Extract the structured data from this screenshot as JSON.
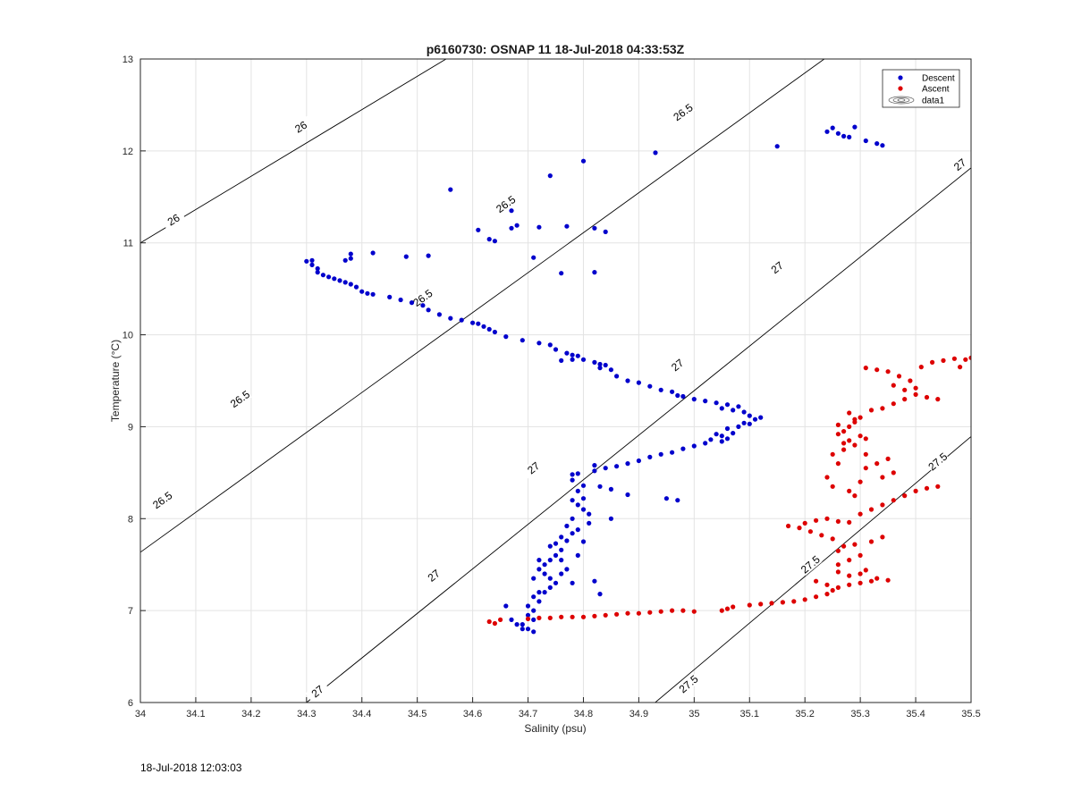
{
  "chart_data": {
    "type": "scatter",
    "title": "p6160730: OSNAP 11 18-Jul-2018 04:33:53Z",
    "xlabel": "Salinity (psu)",
    "ylabel": "Temperature (°C)",
    "xlim": [
      34,
      35.5
    ],
    "ylim": [
      6,
      13
    ],
    "xticks": [
      "34",
      "34.1",
      "34.2",
      "34.3",
      "34.4",
      "34.5",
      "34.6",
      "34.7",
      "34.8",
      "34.9",
      "35",
      "35.1",
      "35.2",
      "35.3",
      "35.4",
      "35.5"
    ],
    "yticks": [
      "6",
      "7",
      "8",
      "9",
      "10",
      "11",
      "12",
      "13"
    ],
    "grid": true,
    "legend_position": "top-right",
    "legend": [
      "Descent",
      "Ascent",
      "data1"
    ],
    "series": [
      {
        "name": "Descent",
        "color": "#0000cc",
        "points": [
          [
            35.24,
            12.21
          ],
          [
            35.25,
            12.25
          ],
          [
            35.26,
            12.19
          ],
          [
            35.27,
            12.16
          ],
          [
            35.28,
            12.15
          ],
          [
            35.29,
            12.26
          ],
          [
            35.31,
            12.11
          ],
          [
            35.33,
            12.08
          ],
          [
            35.34,
            12.06
          ],
          [
            35.15,
            12.05
          ],
          [
            34.93,
            11.98
          ],
          [
            34.8,
            11.89
          ],
          [
            34.74,
            11.73
          ],
          [
            34.56,
            11.58
          ],
          [
            34.67,
            11.35
          ],
          [
            34.61,
            11.14
          ],
          [
            34.63,
            11.04
          ],
          [
            34.64,
            11.02
          ],
          [
            34.68,
            11.19
          ],
          [
            34.67,
            11.16
          ],
          [
            34.72,
            11.17
          ],
          [
            34.77,
            11.18
          ],
          [
            34.82,
            11.16
          ],
          [
            34.84,
            11.12
          ],
          [
            34.71,
            10.84
          ],
          [
            34.76,
            10.67
          ],
          [
            34.82,
            10.68
          ],
          [
            34.42,
            10.89
          ],
          [
            34.38,
            10.88
          ],
          [
            34.38,
            10.83
          ],
          [
            34.48,
            10.85
          ],
          [
            34.52,
            10.86
          ],
          [
            34.37,
            10.81
          ],
          [
            34.3,
            10.8
          ],
          [
            34.31,
            10.81
          ],
          [
            34.31,
            10.76
          ],
          [
            34.32,
            10.72
          ],
          [
            34.32,
            10.68
          ],
          [
            34.33,
            10.65
          ],
          [
            34.34,
            10.63
          ],
          [
            34.35,
            10.61
          ],
          [
            34.36,
            10.59
          ],
          [
            34.37,
            10.57
          ],
          [
            34.38,
            10.55
          ],
          [
            34.39,
            10.52
          ],
          [
            34.4,
            10.47
          ],
          [
            34.41,
            10.45
          ],
          [
            34.42,
            10.44
          ],
          [
            34.45,
            10.41
          ],
          [
            34.47,
            10.38
          ],
          [
            34.49,
            10.35
          ],
          [
            34.51,
            10.32
          ],
          [
            34.52,
            10.27
          ],
          [
            34.54,
            10.22
          ],
          [
            34.56,
            10.18
          ],
          [
            34.58,
            10.16
          ],
          [
            34.6,
            10.13
          ],
          [
            34.61,
            10.12
          ],
          [
            34.62,
            10.09
          ],
          [
            34.63,
            10.06
          ],
          [
            34.64,
            10.03
          ],
          [
            34.66,
            9.98
          ],
          [
            34.69,
            9.94
          ],
          [
            34.72,
            9.91
          ],
          [
            34.74,
            9.89
          ],
          [
            34.75,
            9.84
          ],
          [
            34.77,
            9.8
          ],
          [
            34.78,
            9.78
          ],
          [
            34.79,
            9.77
          ],
          [
            34.78,
            9.73
          ],
          [
            34.8,
            9.73
          ],
          [
            34.76,
            9.72
          ],
          [
            34.82,
            9.7
          ],
          [
            34.83,
            9.68
          ],
          [
            34.84,
            9.67
          ],
          [
            34.85,
            9.62
          ],
          [
            34.83,
            9.64
          ],
          [
            34.86,
            9.55
          ],
          [
            34.88,
            9.5
          ],
          [
            34.9,
            9.48
          ],
          [
            34.92,
            9.44
          ],
          [
            34.94,
            9.4
          ],
          [
            34.96,
            9.38
          ],
          [
            34.97,
            9.34
          ],
          [
            34.98,
            9.33
          ],
          [
            35.0,
            9.3
          ],
          [
            35.02,
            9.28
          ],
          [
            35.04,
            9.26
          ],
          [
            35.06,
            9.24
          ],
          [
            35.08,
            9.22
          ],
          [
            35.07,
            9.18
          ],
          [
            35.05,
            9.2
          ],
          [
            35.09,
            9.16
          ],
          [
            35.1,
            9.12
          ],
          [
            35.11,
            9.08
          ],
          [
            35.12,
            9.1
          ],
          [
            35.1,
            9.03
          ],
          [
            35.08,
            9.0
          ],
          [
            35.06,
            8.98
          ],
          [
            35.09,
            9.04
          ],
          [
            35.07,
            8.93
          ],
          [
            35.05,
            8.9
          ],
          [
            35.03,
            8.86
          ],
          [
            35.04,
            8.92
          ],
          [
            35.06,
            8.87
          ],
          [
            35.05,
            8.84
          ],
          [
            35.02,
            8.82
          ],
          [
            35.0,
            8.79
          ],
          [
            34.98,
            8.76
          ],
          [
            34.96,
            8.72
          ],
          [
            34.94,
            8.7
          ],
          [
            34.92,
            8.67
          ],
          [
            34.9,
            8.63
          ],
          [
            34.88,
            8.6
          ],
          [
            34.86,
            8.57
          ],
          [
            34.84,
            8.55
          ],
          [
            34.82,
            8.52
          ],
          [
            34.79,
            8.49
          ],
          [
            34.78,
            8.48
          ],
          [
            34.78,
            8.42
          ],
          [
            34.8,
            8.36
          ],
          [
            34.79,
            8.3
          ],
          [
            34.78,
            8.2
          ],
          [
            34.79,
            8.15
          ],
          [
            34.8,
            8.1
          ],
          [
            34.81,
            8.05
          ],
          [
            34.78,
            8.0
          ],
          [
            34.77,
            7.92
          ],
          [
            34.79,
            7.88
          ],
          [
            34.78,
            7.84
          ],
          [
            34.76,
            7.8
          ],
          [
            34.77,
            7.76
          ],
          [
            34.75,
            7.73
          ],
          [
            34.74,
            7.7
          ],
          [
            34.76,
            7.66
          ],
          [
            34.75,
            7.6
          ],
          [
            34.74,
            7.55
          ],
          [
            34.73,
            7.5
          ],
          [
            34.72,
            7.45
          ],
          [
            34.73,
            7.4
          ],
          [
            34.74,
            7.35
          ],
          [
            34.75,
            7.3
          ],
          [
            34.74,
            7.25
          ],
          [
            34.72,
            7.2
          ],
          [
            34.71,
            7.15
          ],
          [
            34.72,
            7.1
          ],
          [
            34.7,
            7.05
          ],
          [
            34.71,
            7.0
          ],
          [
            34.7,
            6.95
          ],
          [
            34.71,
            6.9
          ],
          [
            34.69,
            6.85
          ],
          [
            34.7,
            6.8
          ],
          [
            34.71,
            6.77
          ],
          [
            34.66,
            7.05
          ],
          [
            34.67,
            6.9
          ],
          [
            34.68,
            6.85
          ],
          [
            34.69,
            6.8
          ],
          [
            34.72,
            7.55
          ],
          [
            34.71,
            7.35
          ],
          [
            34.73,
            7.2
          ],
          [
            34.76,
            7.4
          ],
          [
            34.78,
            7.3
          ],
          [
            34.82,
            7.32
          ],
          [
            34.83,
            7.18
          ],
          [
            34.85,
            8.0
          ],
          [
            34.83,
            8.35
          ],
          [
            34.85,
            8.32
          ],
          [
            34.88,
            8.26
          ],
          [
            34.82,
            8.58
          ],
          [
            34.95,
            8.22
          ],
          [
            34.97,
            8.2
          ],
          [
            34.8,
            8.22
          ],
          [
            34.81,
            7.95
          ],
          [
            34.8,
            7.75
          ],
          [
            34.79,
            7.6
          ],
          [
            34.76,
            7.55
          ],
          [
            34.77,
            7.45
          ]
        ]
      },
      {
        "name": "Ascent",
        "color": "#dd0000",
        "points": [
          [
            34.63,
            6.88
          ],
          [
            34.64,
            6.86
          ],
          [
            34.65,
            6.9
          ],
          [
            34.7,
            6.91
          ],
          [
            34.72,
            6.92
          ],
          [
            34.74,
            6.92
          ],
          [
            34.76,
            6.93
          ],
          [
            34.78,
            6.93
          ],
          [
            34.8,
            6.93
          ],
          [
            34.82,
            6.94
          ],
          [
            34.84,
            6.95
          ],
          [
            34.86,
            6.96
          ],
          [
            34.88,
            6.97
          ],
          [
            34.9,
            6.97
          ],
          [
            34.92,
            6.98
          ],
          [
            34.94,
            6.99
          ],
          [
            34.96,
            7.0
          ],
          [
            34.98,
            7.0
          ],
          [
            35.0,
            6.99
          ],
          [
            35.05,
            7.0
          ],
          [
            35.06,
            7.02
          ],
          [
            35.07,
            7.04
          ],
          [
            35.1,
            7.06
          ],
          [
            35.12,
            7.07
          ],
          [
            35.14,
            7.08
          ],
          [
            35.16,
            7.09
          ],
          [
            35.18,
            7.1
          ],
          [
            35.2,
            7.12
          ],
          [
            35.22,
            7.15
          ],
          [
            35.24,
            7.18
          ],
          [
            35.25,
            7.22
          ],
          [
            35.26,
            7.25
          ],
          [
            35.28,
            7.28
          ],
          [
            35.3,
            7.3
          ],
          [
            35.32,
            7.32
          ],
          [
            35.33,
            7.35
          ],
          [
            35.35,
            7.33
          ],
          [
            35.31,
            7.44
          ],
          [
            35.3,
            7.4
          ],
          [
            35.28,
            7.38
          ],
          [
            35.26,
            7.5
          ],
          [
            35.28,
            7.55
          ],
          [
            35.3,
            7.6
          ],
          [
            35.26,
            7.65
          ],
          [
            35.27,
            7.7
          ],
          [
            35.29,
            7.72
          ],
          [
            35.32,
            7.75
          ],
          [
            35.34,
            7.8
          ],
          [
            35.25,
            7.78
          ],
          [
            35.23,
            7.82
          ],
          [
            35.21,
            7.86
          ],
          [
            35.19,
            7.9
          ],
          [
            35.17,
            7.92
          ],
          [
            35.2,
            7.95
          ],
          [
            35.22,
            7.98
          ],
          [
            35.24,
            8.0
          ],
          [
            35.26,
            7.97
          ],
          [
            35.3,
            8.05
          ],
          [
            35.32,
            8.1
          ],
          [
            35.34,
            8.15
          ],
          [
            35.36,
            8.2
          ],
          [
            35.38,
            8.25
          ],
          [
            35.4,
            8.3
          ],
          [
            35.42,
            8.33
          ],
          [
            35.44,
            8.35
          ],
          [
            35.25,
            8.35
          ],
          [
            35.28,
            8.3
          ],
          [
            35.3,
            8.4
          ],
          [
            35.34,
            8.45
          ],
          [
            35.36,
            8.5
          ],
          [
            35.31,
            8.55
          ],
          [
            35.33,
            8.6
          ],
          [
            35.35,
            8.65
          ],
          [
            35.25,
            8.7
          ],
          [
            35.27,
            8.75
          ],
          [
            35.29,
            8.8
          ],
          [
            35.28,
            8.85
          ],
          [
            35.3,
            8.9
          ],
          [
            35.26,
            8.92
          ],
          [
            35.27,
            8.95
          ],
          [
            35.28,
            9.0
          ],
          [
            35.29,
            9.05
          ],
          [
            35.26,
            9.02
          ],
          [
            35.3,
            9.1
          ],
          [
            35.28,
            9.15
          ],
          [
            35.32,
            9.18
          ],
          [
            35.34,
            9.2
          ],
          [
            35.36,
            9.25
          ],
          [
            35.38,
            9.3
          ],
          [
            35.4,
            9.35
          ],
          [
            35.38,
            9.4
          ],
          [
            35.36,
            9.45
          ],
          [
            35.39,
            9.5
          ],
          [
            35.37,
            9.55
          ],
          [
            35.35,
            9.6
          ],
          [
            35.33,
            9.62
          ],
          [
            35.31,
            9.64
          ],
          [
            35.41,
            9.65
          ],
          [
            35.43,
            9.7
          ],
          [
            35.45,
            9.72
          ],
          [
            35.47,
            9.74
          ],
          [
            35.49,
            9.73
          ],
          [
            35.5,
            9.75
          ],
          [
            35.48,
            9.65
          ],
          [
            35.42,
            9.32
          ],
          [
            35.44,
            9.3
          ],
          [
            35.4,
            9.42
          ],
          [
            35.26,
            8.6
          ],
          [
            35.24,
            8.45
          ],
          [
            35.29,
            8.25
          ],
          [
            35.31,
            8.7
          ],
          [
            35.28,
            7.96
          ],
          [
            35.26,
            7.42
          ],
          [
            35.24,
            7.28
          ],
          [
            35.22,
            7.32
          ],
          [
            35.31,
            8.87
          ],
          [
            35.27,
            8.82
          ],
          [
            35.29,
            9.08
          ]
        ]
      }
    ],
    "isopycnal_labels": [
      "26",
      "26.5",
      "27",
      "27.5"
    ],
    "footer_timestamp": "18-Jul-2018 12:03:03"
  }
}
